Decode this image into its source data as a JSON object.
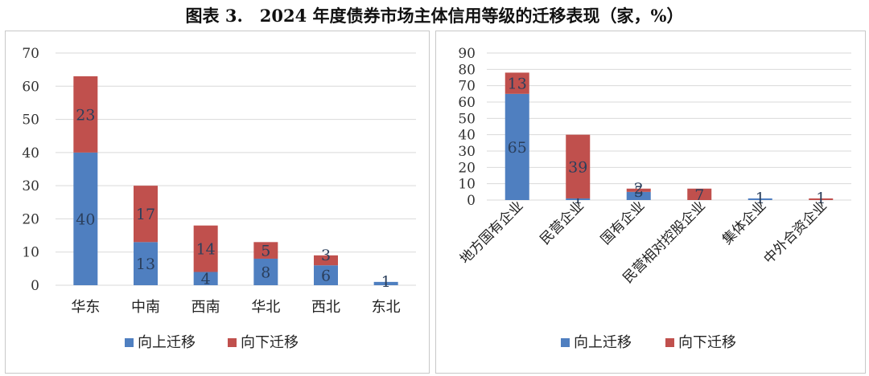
{
  "title": "图表 3.　2024 年度债券市场主体信用等级的迁移表现（家，%）",
  "colors": {
    "up": "#4f7fc0",
    "down": "#c0504d",
    "grid": "#d9d9d9"
  },
  "chart_data": [
    {
      "type": "bar",
      "stacked": true,
      "categories": [
        "华东",
        "中南",
        "西南",
        "华北",
        "西北",
        "东北"
      ],
      "series": [
        {
          "name": "向上迁移",
          "values": [
            40,
            13,
            4,
            8,
            6,
            1
          ]
        },
        {
          "name": "向下迁移",
          "values": [
            23,
            17,
            14,
            5,
            3,
            0
          ]
        }
      ],
      "ylim": [
        0,
        70
      ],
      "yticks": [
        0,
        10,
        20,
        30,
        40,
        50,
        60,
        70
      ],
      "grid": true,
      "legend": "bottom"
    },
    {
      "type": "bar",
      "stacked": true,
      "categories": [
        "地方国有企业",
        "民营企业",
        "国有企业",
        "民营相对控股企业",
        "集体企业",
        "中外合资企业"
      ],
      "series": [
        {
          "name": "向上迁移",
          "values": [
            65,
            1,
            5,
            0,
            1,
            0
          ]
        },
        {
          "name": "向下迁移",
          "values": [
            13,
            39,
            2,
            7,
            0,
            1
          ]
        }
      ],
      "ylim": [
        0,
        90
      ],
      "yticks": [
        0,
        10,
        20,
        30,
        40,
        50,
        60,
        70,
        80,
        90
      ],
      "grid": true,
      "legend": "bottom"
    }
  ]
}
